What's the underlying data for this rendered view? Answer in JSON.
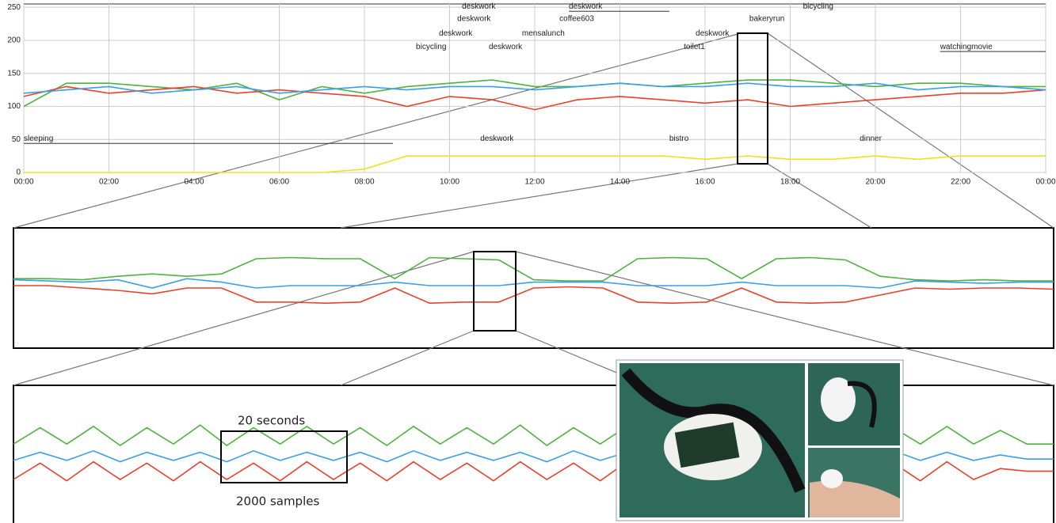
{
  "chart_data": [
    {
      "type": "line",
      "x": [
        0,
        1,
        2,
        3,
        4,
        5,
        6,
        7,
        8,
        9,
        10,
        11,
        12,
        13,
        14,
        15,
        16,
        17,
        18,
        19,
        20,
        21,
        22,
        23,
        24
      ],
      "xlim": [
        0,
        24
      ],
      "xticks": [
        {
          "value": 0,
          "label": "00:00"
        },
        {
          "value": 2,
          "label": "02:00"
        },
        {
          "value": 4,
          "label": "04:00"
        },
        {
          "value": 6,
          "label": "06:00"
        },
        {
          "value": 8,
          "label": "08:00"
        },
        {
          "value": 10,
          "label": "10:00"
        },
        {
          "value": 12,
          "label": "12:00"
        },
        {
          "value": 14,
          "label": "14:00"
        },
        {
          "value": 16,
          "label": "16:00"
        },
        {
          "value": 18,
          "label": "18:00"
        },
        {
          "value": 20,
          "label": "20:00"
        },
        {
          "value": 22,
          "label": "22:00"
        },
        {
          "value": 24,
          "label": "00:00"
        }
      ],
      "ylim": [
        0,
        255
      ],
      "yticks": [
        0,
        50,
        100,
        150,
        200,
        250
      ],
      "grid": true,
      "series": [
        {
          "color": "#4db33d",
          "values": [
            100,
            135,
            135,
            130,
            125,
            135,
            110,
            130,
            120,
            130,
            135,
            140,
            130,
            130,
            135,
            130,
            135,
            140,
            140,
            135,
            130,
            135,
            135,
            130,
            130
          ]
        },
        {
          "color": "#e8412c",
          "values": [
            115,
            130,
            120,
            125,
            130,
            120,
            125,
            120,
            115,
            100,
            115,
            110,
            95,
            110,
            115,
            110,
            105,
            110,
            100,
            105,
            110,
            115,
            120,
            120,
            125
          ]
        },
        {
          "color": "#3b9ee8",
          "values": [
            120,
            125,
            130,
            120,
            125,
            130,
            120,
            125,
            130,
            125,
            130,
            130,
            125,
            130,
            135,
            130,
            130,
            135,
            130,
            130,
            135,
            125,
            130,
            130,
            125
          ]
        },
        {
          "color": "#f0e020",
          "values": [
            0,
            0,
            0,
            0,
            0,
            0,
            0,
            0,
            5,
            25,
            25,
            25,
            25,
            25,
            25,
            25,
            20,
            25,
            20,
            20,
            25,
            20,
            25,
            25,
            25
          ]
        }
      ],
      "annotations": [
        {
          "text": "deskwork",
          "start": 10.29,
          "y": 244
        },
        {
          "text": "deskwork",
          "start": 12.8,
          "end": 15.16,
          "y": 244
        },
        {
          "text": "bicycling",
          "start": 18.3,
          "y": 244
        },
        {
          "text": "deskwork",
          "start": 10.18,
          "y": 225
        },
        {
          "text": "coffee603",
          "start": 12.58,
          "y": 225
        },
        {
          "text": "bakeryrun",
          "start": 17.04,
          "y": 225
        },
        {
          "text": "deskwork",
          "start": 9.75,
          "y": 203
        },
        {
          "text": "mensalunch",
          "start": 11.7,
          "y": 203
        },
        {
          "text": "deskwork",
          "start": 15.78,
          "y": 203
        },
        {
          "text": "bicycling",
          "start": 9.21,
          "y": 183
        },
        {
          "text": "deskwork",
          "start": 10.92,
          "y": 183
        },
        {
          "text": "toilet1",
          "start": 15.5,
          "y": 183
        },
        {
          "text": "watchingmovie",
          "start": 21.52,
          "end": 24,
          "y": 183
        },
        {
          "text": "sleeping",
          "start": 0,
          "end": 8.67,
          "y": 44
        },
        {
          "text": "deskwork",
          "start": 10.72,
          "y": 44
        },
        {
          "text": "bistro",
          "start": 15.16,
          "y": 44
        },
        {
          "text": "dinner",
          "start": 19.63,
          "y": 44
        }
      ]
    },
    {
      "type": "line",
      "x": [
        0,
        1,
        2,
        3,
        4,
        5,
        6,
        7,
        8,
        9,
        10,
        11,
        12,
        13,
        14,
        15,
        16,
        17,
        18,
        19,
        20,
        21,
        22,
        23,
        24,
        25,
        26,
        27,
        28,
        29,
        30
      ],
      "xlim": [
        0,
        30
      ],
      "ylim": [
        0,
        100
      ],
      "series": [
        {
          "color": "#4db33d",
          "values": [
            58,
            58,
            57,
            60,
            62,
            60,
            62,
            75,
            76,
            75,
            75,
            58,
            76,
            75,
            74,
            57,
            56,
            56,
            75,
            76,
            75,
            58,
            75,
            76,
            74,
            60,
            57,
            56,
            57,
            56,
            56
          ]
        },
        {
          "color": "#e8412c",
          "values": [
            52,
            52,
            50,
            48,
            45,
            50,
            50,
            38,
            38,
            37,
            38,
            50,
            37,
            38,
            38,
            50,
            51,
            50,
            38,
            37,
            38,
            50,
            38,
            37,
            38,
            44,
            50,
            49,
            50,
            50,
            49
          ]
        },
        {
          "color": "#3b9ee8",
          "values": [
            57,
            56,
            55,
            57,
            50,
            58,
            55,
            50,
            52,
            52,
            52,
            55,
            52,
            52,
            52,
            55,
            55,
            55,
            52,
            52,
            52,
            55,
            52,
            52,
            52,
            50,
            56,
            55,
            54,
            55,
            55
          ]
        }
      ]
    },
    {
      "type": "line",
      "x": [
        0,
        1,
        2,
        3,
        4,
        5,
        6,
        7,
        8,
        9,
        10,
        11,
        12,
        13,
        14,
        15,
        16,
        17,
        18,
        19,
        20,
        21,
        22,
        23,
        24,
        25,
        26,
        27,
        28,
        29,
        30,
        31,
        32,
        33,
        34,
        35,
        36,
        37,
        38,
        39
      ],
      "xlim": [
        0,
        39
      ],
      "ylim": [
        0,
        100
      ],
      "series": [
        {
          "color": "#4db33d",
          "values": [
            58,
            70,
            58,
            71,
            57,
            70,
            58,
            72,
            57,
            70,
            58,
            71,
            58,
            70,
            57,
            71,
            58,
            70,
            58,
            72,
            57,
            70,
            58,
            71,
            58,
            70,
            57,
            71,
            58,
            70,
            58,
            72,
            57,
            70,
            58,
            71,
            58,
            68,
            58,
            58
          ]
        },
        {
          "color": "#3b9ee8",
          "values": [
            46,
            52,
            46,
            53,
            45,
            52,
            46,
            52,
            45,
            53,
            46,
            52,
            46,
            52,
            45,
            53,
            46,
            52,
            46,
            52,
            45,
            53,
            46,
            52,
            46,
            52,
            45,
            53,
            46,
            52,
            46,
            52,
            45,
            53,
            46,
            52,
            46,
            50,
            47,
            47
          ]
        },
        {
          "color": "#e8412c",
          "values": [
            32,
            44,
            31,
            45,
            32,
            44,
            31,
            45,
            32,
            44,
            31,
            45,
            32,
            44,
            31,
            45,
            32,
            44,
            31,
            45,
            32,
            44,
            31,
            45,
            32,
            44,
            31,
            45,
            32,
            44,
            31,
            45,
            32,
            44,
            31,
            45,
            32,
            40,
            38,
            38
          ]
        }
      ],
      "annotations": [
        {
          "text": "20 seconds"
        },
        {
          "text": "2000 samples"
        }
      ]
    }
  ]
}
